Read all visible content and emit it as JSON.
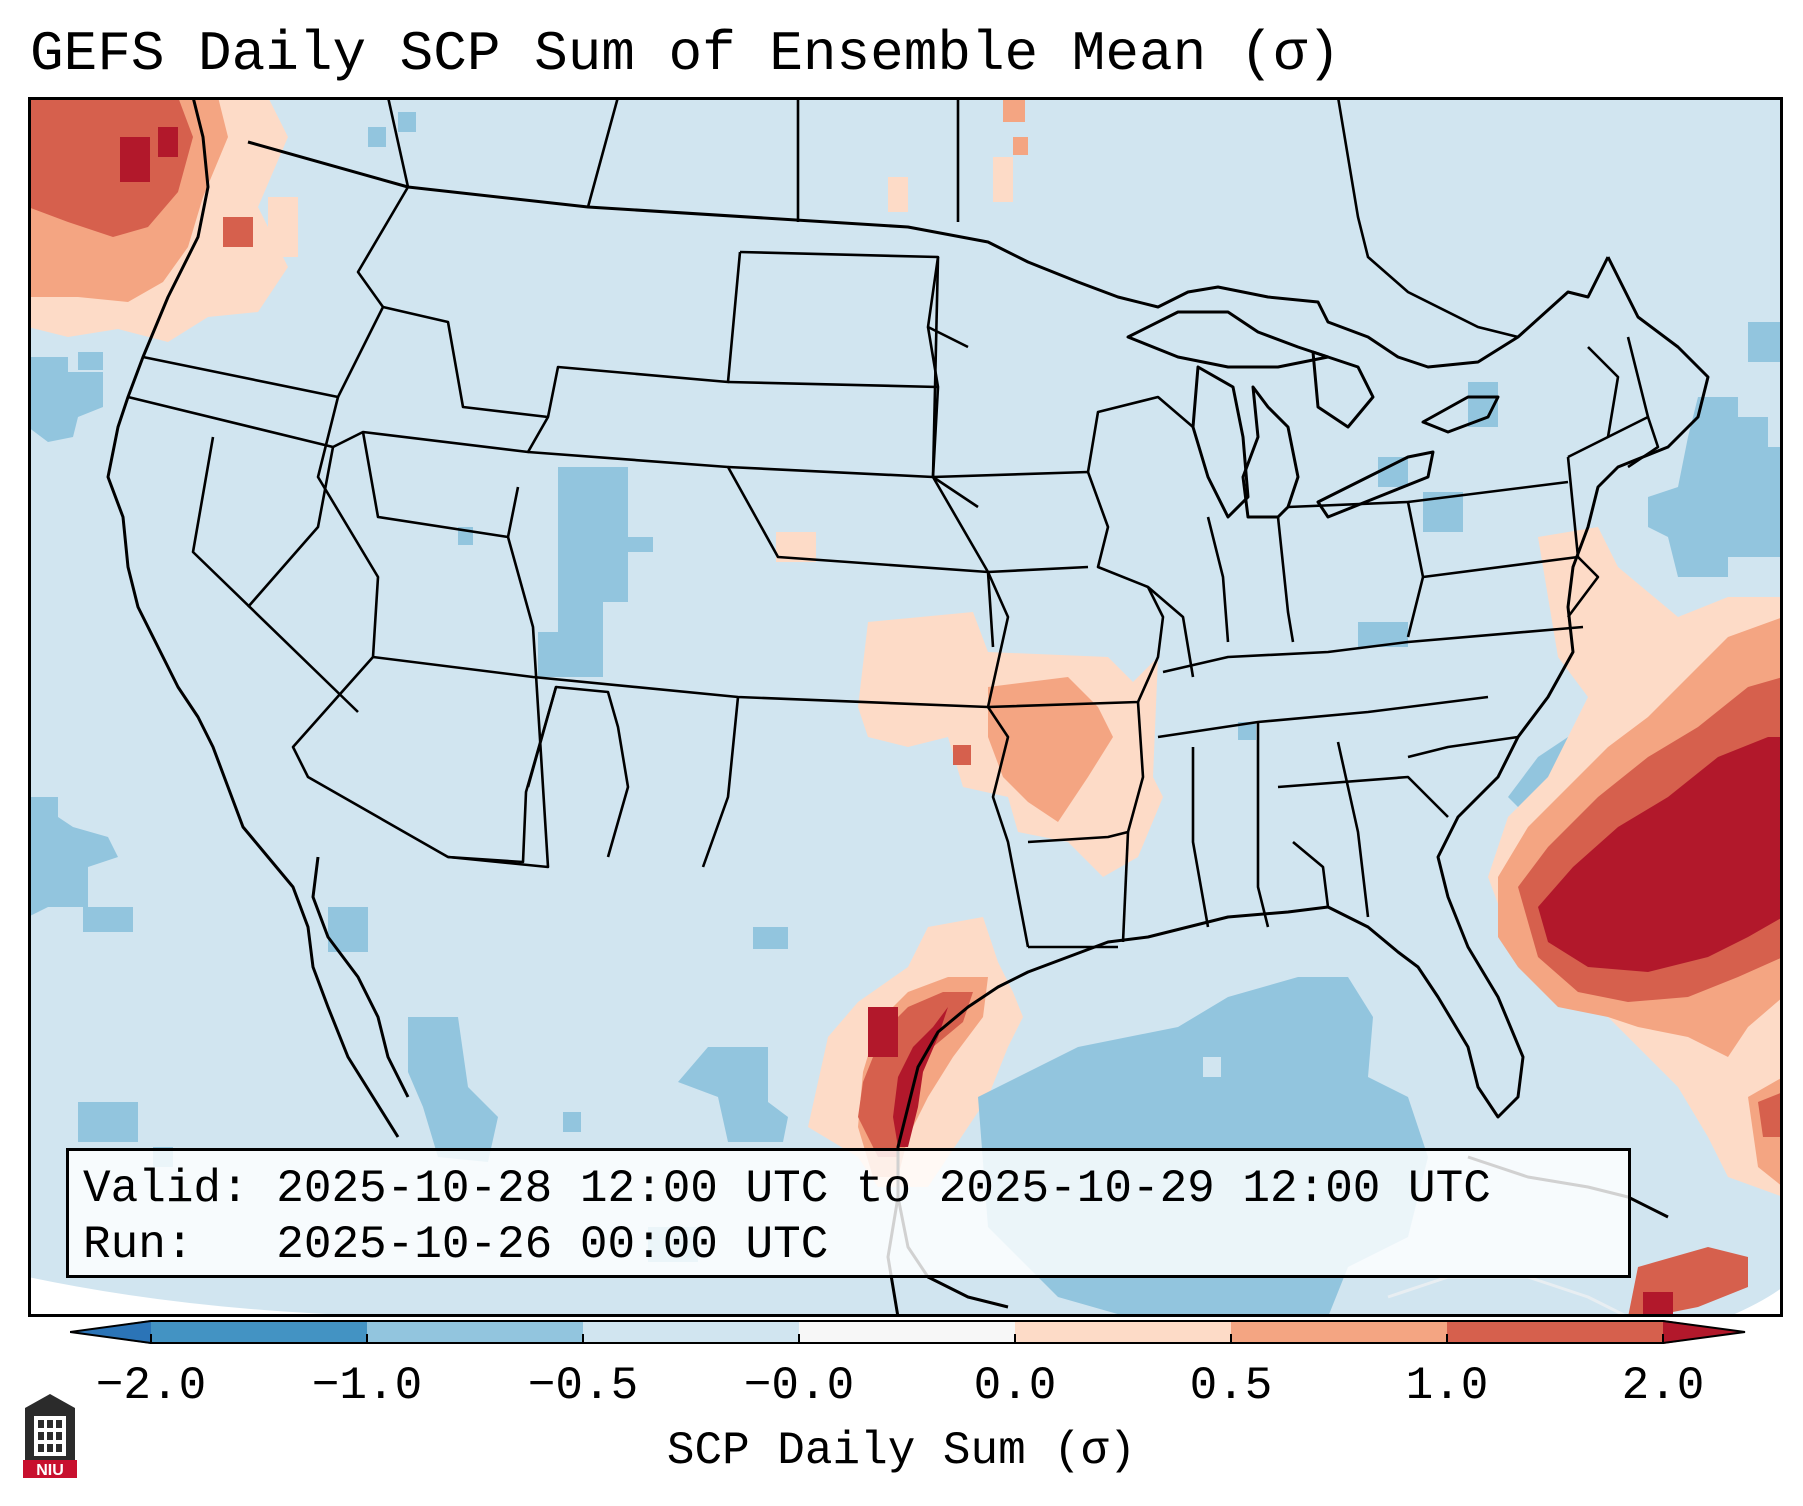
{
  "title": "GEFS Daily SCP Sum of Ensemble Mean (σ)",
  "info": {
    "valid_line": "Valid: 2025-10-28 12:00 UTC to 2025-10-29 12:00 UTC",
    "run_line": "Run:   2025-10-26 00:00 UTC"
  },
  "colorbar": {
    "title": "SCP Daily Sum (σ)",
    "tick_labels": [
      "−2.0",
      "−1.0",
      "−0.5",
      "−0.0",
      "0.0",
      "0.5",
      "1.0",
      "2.0"
    ],
    "colors": {
      "below_min": "#2b74b7",
      "neg_strong": "#4393c3",
      "neg_mid": "#92c5de",
      "neg_weak": "#d1e5f0",
      "zero": "#f7f7f7",
      "pos_weak": "#fddbc7",
      "pos_mid": "#f4a582",
      "pos_strong": "#d6604d",
      "above_max": "#b2182b"
    }
  },
  "map": {
    "background_color": "#d1e5f0",
    "region": "Contiguous United States",
    "features": [
      "Heavy positive anomaly off Carolina coast",
      "Positive anomaly over Texas coast",
      "Positive anomaly Pacific Northwest",
      "Negative anomaly Gulf of Mexico"
    ]
  },
  "logo": {
    "text": "NIU"
  }
}
